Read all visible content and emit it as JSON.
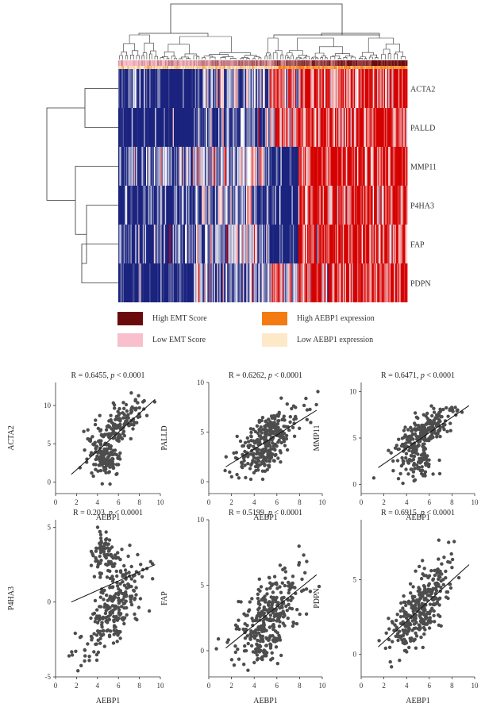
{
  "heatmap": {
    "genes": [
      "ACTA2",
      "PALLD",
      "MMP11",
      "P4HA3",
      "FAP",
      "PDPN"
    ],
    "colors": {
      "low": "#1a237e",
      "mid": "#ffffff",
      "high": "#d50000",
      "emt_high": "#6b0a0a",
      "emt_low": "#f7c0cc",
      "aebp1_high": "#f47b12",
      "aebp1_low": "#fde8c8"
    },
    "legend": [
      {
        "label": "High EMT Score",
        "color": "#6b0a0a"
      },
      {
        "label": "High AEBP1 expression",
        "color": "#f47b12"
      },
      {
        "label": "Low EMT Score",
        "color": "#f7c0cc"
      },
      {
        "label": "Low AEBP1 expression",
        "color": "#fde8c8"
      }
    ]
  },
  "chart_data": [
    {
      "type": "heatmap",
      "rows": [
        "ACTA2",
        "PALLD",
        "MMP11",
        "P4HA3",
        "FAP",
        "PDPN"
      ],
      "annotation_rows": [
        "EMT Score",
        "AEBP1 expression"
      ]
    },
    {
      "type": "scatter",
      "title": "R = 0.6455, p < 0.0001",
      "r": "R = 0.6455",
      "p": "p",
      "p_rest": "< 0.0001",
      "xlabel": "AEBP1",
      "ylabel": "ACTA2",
      "xlim": [
        0,
        10
      ],
      "ylim": [
        -1.5,
        13
      ],
      "xticks": [
        0,
        2,
        4,
        6,
        8,
        10
      ],
      "yticks": [
        0,
        5,
        10
      ],
      "fit": {
        "x": [
          1.5,
          9.5
        ],
        "y": [
          1.0,
          10.8
        ]
      },
      "clusters": [
        {
          "cx": 5.8,
          "cy": 7.2,
          "sx": 1.4,
          "sy": 1.3,
          "n": 170,
          "slope": 0.9
        },
        {
          "cx": 4.8,
          "cy": 2.8,
          "sx": 0.7,
          "sy": 1.0,
          "n": 110,
          "slope": 0.0
        }
      ]
    },
    {
      "type": "scatter",
      "title": "R = 0.6262, p < 0.0001",
      "r": "R = 0.6262",
      "p": "p",
      "p_rest": "< 0.0001",
      "xlabel": "AEBP1",
      "ylabel": "PALLD",
      "xlim": [
        0,
        10
      ],
      "ylim": [
        -1.2,
        10
      ],
      "xticks": [
        0,
        2,
        4,
        6,
        8,
        10
      ],
      "yticks": [
        0,
        5,
        10
      ],
      "fit": {
        "x": [
          1.5,
          9.5
        ],
        "y": [
          1.5,
          7.2
        ]
      },
      "clusters": [
        {
          "cx": 5.2,
          "cy": 4.3,
          "sx": 1.4,
          "sy": 1.2,
          "n": 270,
          "slope": 0.7
        },
        {
          "cx": 4.7,
          "cy": 2.5,
          "sx": 0.7,
          "sy": 1.0,
          "n": 50,
          "slope": 0.0
        }
      ]
    },
    {
      "type": "scatter",
      "title": "R = 0.6471, p < 0.0001",
      "r": "R = 0.6471",
      "p": "p",
      "p_rest": "< 0.0001",
      "xlabel": "AEBP1",
      "ylabel": "MMP11",
      "xlim": [
        0,
        10
      ],
      "ylim": [
        -1,
        11
      ],
      "xticks": [
        0,
        2,
        4,
        6,
        8,
        10
      ],
      "yticks": [
        0,
        5,
        10
      ],
      "fit": {
        "x": [
          1.5,
          9.5
        ],
        "y": [
          1.8,
          8.5
        ]
      },
      "clusters": [
        {
          "cx": 5.6,
          "cy": 5.6,
          "sx": 1.4,
          "sy": 1.1,
          "n": 210,
          "slope": 0.85
        },
        {
          "cx": 4.8,
          "cy": 2.2,
          "sx": 0.8,
          "sy": 0.9,
          "n": 80,
          "slope": 0.0
        }
      ]
    },
    {
      "type": "scatter",
      "title": "R = 0.203, p < 0.0001",
      "r": "R = 0.203",
      "p": "p",
      "p_rest": "< 0.0001",
      "xlabel": "AEBP1",
      "ylabel": "P4HA3",
      "xlim": [
        0,
        10
      ],
      "ylim": [
        -5,
        5.5
      ],
      "xticks": [
        0,
        2,
        4,
        6,
        8,
        10
      ],
      "yticks": [
        -5,
        0,
        5
      ],
      "fit": {
        "x": [
          1.5,
          9.5
        ],
        "y": [
          0.0,
          2.5
        ]
      },
      "clusters": [
        {
          "cx": 5.5,
          "cy": -0.5,
          "sx": 1.6,
          "sy": 1.2,
          "n": 250,
          "slope": 0.75
        },
        {
          "cx": 4.8,
          "cy": 3.2,
          "sx": 0.6,
          "sy": 0.7,
          "n": 90,
          "slope": 0.0
        }
      ]
    },
    {
      "type": "scatter",
      "title": "R = 0.5199, p < 0.0001",
      "r": "R = 0.5199",
      "p": "p",
      "p_rest": "< 0.0001",
      "xlabel": "AEBP1",
      "ylabel": "FAP",
      "xlim": [
        0,
        10
      ],
      "ylim": [
        -2,
        10
      ],
      "xticks": [
        0,
        2,
        4,
        6,
        8,
        10
      ],
      "yticks": [
        0,
        5,
        10
      ],
      "fit": {
        "x": [
          1.5,
          9.5
        ],
        "y": [
          0.2,
          5.8
        ]
      },
      "clusters": [
        {
          "cx": 5.3,
          "cy": 2.8,
          "sx": 1.4,
          "sy": 1.3,
          "n": 300,
          "slope": 0.6
        },
        {
          "cx": 4.6,
          "cy": 0.2,
          "sx": 0.7,
          "sy": 0.8,
          "n": 40,
          "slope": 0.0
        }
      ]
    },
    {
      "type": "scatter",
      "title": "R = 0.6915, p < 0.0001",
      "r": "R = 0.6915",
      "p": "p",
      "p_rest": "< 0.0001",
      "xlabel": "AEBP1",
      "ylabel": "PDPN",
      "xlim": [
        0,
        10
      ],
      "ylim": [
        -1.5,
        9
      ],
      "xticks": [
        0,
        2,
        4,
        6,
        8,
        10
      ],
      "yticks": [
        0,
        5
      ],
      "fit": {
        "x": [
          1.5,
          9.5
        ],
        "y": [
          0.5,
          6.0
        ]
      },
      "clusters": [
        {
          "cx": 5.2,
          "cy": 3.1,
          "sx": 1.3,
          "sy": 1.1,
          "n": 320,
          "slope": 0.75
        }
      ]
    }
  ]
}
